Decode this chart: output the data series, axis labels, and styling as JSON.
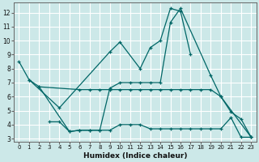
{
  "bg_color": "#cce8e8",
  "grid_color": "#ffffff",
  "line_color": "#006666",
  "xlabel": "Humidex (Indice chaleur)",
  "xlim": [
    -0.5,
    23.5
  ],
  "ylim": [
    2.8,
    12.7
  ],
  "yticks": [
    3,
    4,
    5,
    6,
    7,
    8,
    9,
    10,
    11,
    12
  ],
  "xticks": [
    0,
    1,
    2,
    3,
    4,
    5,
    6,
    7,
    8,
    9,
    10,
    11,
    12,
    13,
    14,
    15,
    16,
    17,
    18,
    19,
    20,
    21,
    22,
    23
  ],
  "lines": [
    {
      "x": [
        0,
        1,
        4,
        9,
        10,
        12,
        13,
        14,
        15,
        16,
        17,
        21,
        22,
        23
      ],
      "y": [
        8.5,
        7.2,
        5.2,
        9.2,
        9.9,
        8.0,
        9.5,
        10.0,
        12.3,
        12.1,
        9.0,
        null,
        null,
        null
      ]
    },
    {
      "x": [
        1,
        2,
        5,
        6,
        7,
        8,
        9,
        10,
        11,
        12,
        13,
        14,
        15,
        16,
        19,
        20,
        23
      ],
      "y": [
        7.2,
        6.7,
        3.5,
        3.6,
        3.6,
        3.6,
        6.6,
        7.0,
        7.0,
        7.0,
        7.0,
        7.0,
        11.3,
        12.3,
        7.5,
        6.0,
        3.1
      ]
    },
    {
      "x": [
        2,
        6,
        7,
        8,
        9,
        10,
        11,
        12,
        13,
        14,
        15,
        16,
        17,
        18,
        19,
        20,
        21,
        22,
        23
      ],
      "y": [
        6.7,
        6.5,
        6.5,
        6.5,
        6.5,
        6.5,
        6.5,
        6.5,
        6.5,
        6.5,
        6.5,
        6.5,
        6.5,
        6.5,
        6.5,
        6.0,
        4.9,
        4.4,
        3.1
      ]
    },
    {
      "x": [
        3,
        4,
        5,
        6,
        7,
        8,
        9,
        10,
        11,
        12,
        13,
        14,
        15,
        16,
        17,
        18,
        19,
        20,
        21,
        22,
        23
      ],
      "y": [
        4.2,
        4.2,
        3.5,
        3.6,
        3.6,
        3.6,
        3.6,
        4.0,
        4.0,
        4.0,
        3.7,
        3.7,
        3.7,
        3.7,
        3.7,
        3.7,
        3.7,
        3.7,
        4.5,
        3.1,
        3.1
      ]
    }
  ]
}
